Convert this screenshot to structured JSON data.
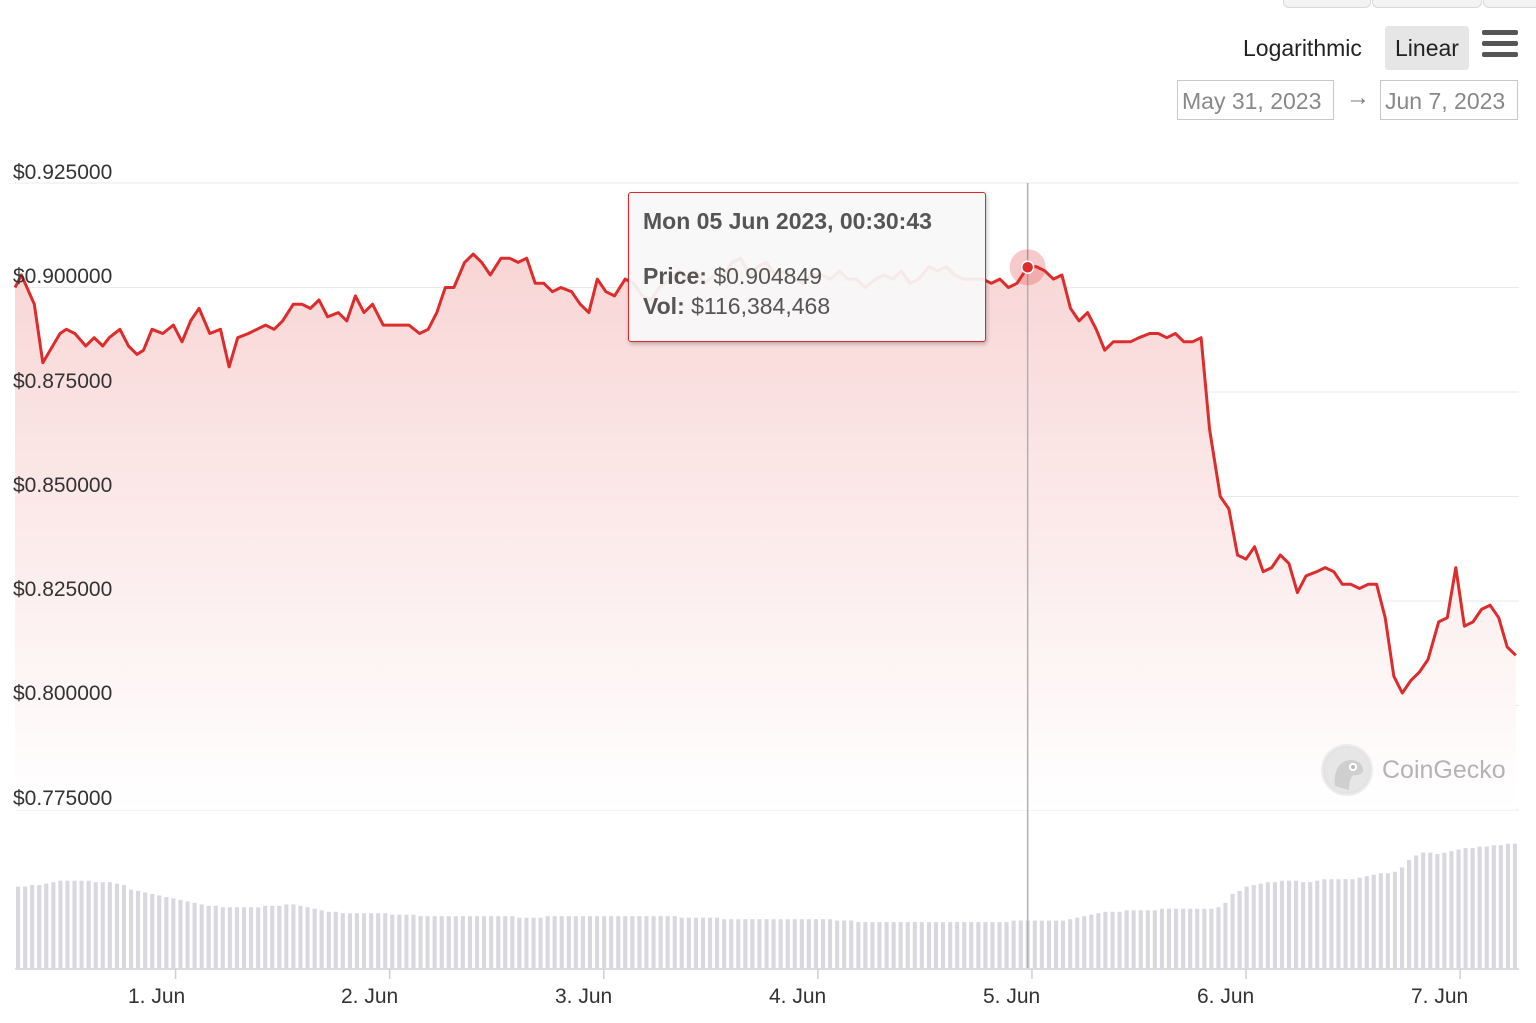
{
  "controls": {
    "scale_log_label": "Logarithmic",
    "scale_linear_label": "Linear",
    "active_scale": "Linear",
    "date_from": "May 31, 2023",
    "date_arrow": "→",
    "date_to": "Jun 7, 2023"
  },
  "tooltip": {
    "date": "Mon 05 Jun 2023, 00:30:43",
    "price_label": "Price:",
    "price_value": "$0.904849",
    "vol_label": "Vol:",
    "vol_value": "$116,384,468"
  },
  "watermark": {
    "text": "CoinGecko"
  },
  "colors": {
    "line": "#dd2c2c",
    "area_top": "#f8d3d3",
    "volume_bar": "#d8d8de",
    "crosshair": "#b0b0b0",
    "grid": "#e9e9e9"
  },
  "chart_data": {
    "type": "line",
    "title": "",
    "xlabel": "",
    "ylabel": "",
    "y_scale": "linear",
    "ylim": [
      0.775,
      0.925
    ],
    "y_ticks": [
      0.925,
      0.9,
      0.875,
      0.85,
      0.825,
      0.8,
      0.775
    ],
    "y_tick_labels": [
      "$0.925000",
      "$0.900000",
      "$0.875000",
      "$0.850000",
      "$0.825000",
      "$0.800000",
      "$0.775000"
    ],
    "x_tick_labels": [
      "1. Jun",
      "2. Jun",
      "3. Jun",
      "4. Jun",
      "5. Jun",
      "6. Jun",
      "7. Jun"
    ],
    "x_tick_days": [
      0.75,
      1.75,
      2.75,
      3.75,
      4.75,
      5.75,
      6.75
    ],
    "x_range_days": [
      0,
      7.025
    ],
    "hover_point": {
      "day": 4.73,
      "price": 0.904849
    },
    "series": [
      {
        "values": [
          [
            0.0,
            0.9
          ],
          [
            0.03,
            0.903
          ],
          [
            0.09,
            0.896
          ],
          [
            0.13,
            0.882
          ],
          [
            0.21,
            0.889
          ],
          [
            0.24,
            0.89
          ],
          [
            0.28,
            0.889
          ],
          [
            0.33,
            0.886
          ],
          [
            0.37,
            0.888
          ],
          [
            0.41,
            0.886
          ],
          [
            0.44,
            0.888
          ],
          [
            0.49,
            0.89
          ],
          [
            0.53,
            0.886
          ],
          [
            0.57,
            0.884
          ],
          [
            0.6,
            0.885
          ],
          [
            0.64,
            0.89
          ],
          [
            0.69,
            0.889
          ],
          [
            0.74,
            0.891
          ],
          [
            0.78,
            0.887
          ],
          [
            0.82,
            0.892
          ],
          [
            0.86,
            0.895
          ],
          [
            0.91,
            0.889
          ],
          [
            0.96,
            0.89
          ],
          [
            1.0,
            0.881
          ],
          [
            1.04,
            0.888
          ],
          [
            1.09,
            0.889
          ],
          [
            1.13,
            0.89
          ],
          [
            1.17,
            0.891
          ],
          [
            1.21,
            0.89
          ],
          [
            1.25,
            0.892
          ],
          [
            1.3,
            0.896
          ],
          [
            1.34,
            0.896
          ],
          [
            1.38,
            0.895
          ],
          [
            1.42,
            0.897
          ],
          [
            1.46,
            0.893
          ],
          [
            1.51,
            0.894
          ],
          [
            1.55,
            0.892
          ],
          [
            1.59,
            0.898
          ],
          [
            1.63,
            0.894
          ],
          [
            1.67,
            0.896
          ],
          [
            1.72,
            0.891
          ],
          [
            1.76,
            0.891
          ],
          [
            1.8,
            0.891
          ],
          [
            1.84,
            0.891
          ],
          [
            1.89,
            0.889
          ],
          [
            1.93,
            0.89
          ],
          [
            1.97,
            0.894
          ],
          [
            2.01,
            0.9
          ],
          [
            2.05,
            0.9
          ],
          [
            2.1,
            0.906
          ],
          [
            2.14,
            0.908
          ],
          [
            2.18,
            0.906
          ],
          [
            2.22,
            0.903
          ],
          [
            2.27,
            0.907
          ],
          [
            2.31,
            0.907
          ],
          [
            2.35,
            0.906
          ],
          [
            2.39,
            0.907
          ],
          [
            2.43,
            0.901
          ],
          [
            2.47,
            0.901
          ],
          [
            2.51,
            0.899
          ],
          [
            2.55,
            0.9
          ],
          [
            2.6,
            0.899
          ],
          [
            2.64,
            0.896
          ],
          [
            2.68,
            0.894
          ],
          [
            2.72,
            0.902
          ],
          [
            2.76,
            0.899
          ],
          [
            2.8,
            0.898
          ],
          [
            2.85,
            0.902
          ],
          [
            2.89,
            0.901
          ],
          [
            2.93,
            0.898
          ],
          [
            2.97,
            0.897
          ],
          [
            3.01,
            0.9
          ],
          [
            3.06,
            0.902
          ],
          [
            3.1,
            0.904
          ],
          [
            3.14,
            0.902
          ],
          [
            3.18,
            0.904
          ],
          [
            3.22,
            0.901
          ],
          [
            3.27,
            0.903
          ],
          [
            3.31,
            0.903
          ],
          [
            3.35,
            0.906
          ],
          [
            3.39,
            0.907
          ],
          [
            3.43,
            0.903
          ],
          [
            3.47,
            0.905
          ],
          [
            3.51,
            0.906
          ],
          [
            3.55,
            0.903
          ],
          [
            3.6,
            0.904
          ],
          [
            3.64,
            0.902
          ],
          [
            3.68,
            0.901
          ],
          [
            3.72,
            0.903
          ],
          [
            3.77,
            0.903
          ],
          [
            3.81,
            0.902
          ],
          [
            3.85,
            0.904
          ],
          [
            3.89,
            0.902
          ],
          [
            3.93,
            0.902
          ],
          [
            3.97,
            0.9
          ],
          [
            4.02,
            0.902
          ],
          [
            4.06,
            0.903
          ],
          [
            4.1,
            0.902
          ],
          [
            4.14,
            0.904
          ],
          [
            4.18,
            0.901
          ],
          [
            4.22,
            0.902
          ],
          [
            4.27,
            0.905
          ],
          [
            4.31,
            0.904
          ],
          [
            4.35,
            0.905
          ],
          [
            4.39,
            0.903
          ],
          [
            4.43,
            0.902
          ],
          [
            4.47,
            0.902
          ],
          [
            4.52,
            0.902
          ],
          [
            4.56,
            0.901
          ],
          [
            4.6,
            0.902
          ],
          [
            4.64,
            0.9
          ],
          [
            4.68,
            0.901
          ],
          [
            4.73,
            0.904849
          ],
          [
            4.77,
            0.905
          ],
          [
            4.81,
            0.904
          ],
          [
            4.85,
            0.902
          ],
          [
            4.89,
            0.903
          ],
          [
            4.93,
            0.895
          ],
          [
            4.97,
            0.892
          ],
          [
            5.01,
            0.894
          ],
          [
            5.05,
            0.89
          ],
          [
            5.09,
            0.885
          ],
          [
            5.13,
            0.887
          ],
          [
            5.17,
            0.887
          ],
          [
            5.21,
            0.887
          ],
          [
            5.25,
            0.888
          ],
          [
            5.3,
            0.889
          ],
          [
            5.34,
            0.889
          ],
          [
            5.38,
            0.888
          ],
          [
            5.42,
            0.889
          ],
          [
            5.46,
            0.887
          ],
          [
            5.5,
            0.887
          ],
          [
            5.54,
            0.888
          ],
          [
            5.58,
            0.866
          ],
          [
            5.63,
            0.85
          ],
          [
            5.67,
            0.847
          ],
          [
            5.71,
            0.836
          ],
          [
            5.75,
            0.835
          ],
          [
            5.79,
            0.838
          ],
          [
            5.83,
            0.832
          ],
          [
            5.87,
            0.833
          ],
          [
            5.91,
            0.836
          ],
          [
            5.95,
            0.834
          ],
          [
            5.99,
            0.827
          ],
          [
            6.03,
            0.831
          ],
          [
            6.08,
            0.832
          ],
          [
            6.12,
            0.833
          ],
          [
            6.16,
            0.832
          ],
          [
            6.2,
            0.829
          ],
          [
            6.24,
            0.829
          ],
          [
            6.28,
            0.828
          ],
          [
            6.32,
            0.829
          ],
          [
            6.36,
            0.829
          ],
          [
            6.4,
            0.821
          ],
          [
            6.44,
            0.807
          ],
          [
            6.48,
            0.803
          ],
          [
            6.52,
            0.806
          ],
          [
            6.56,
            0.808
          ],
          [
            6.6,
            0.811
          ],
          [
            6.65,
            0.82
          ],
          [
            6.69,
            0.821
          ],
          [
            6.73,
            0.833
          ],
          [
            6.77,
            0.819
          ],
          [
            6.81,
            0.82
          ],
          [
            6.85,
            0.823
          ],
          [
            6.89,
            0.824
          ],
          [
            6.93,
            0.821
          ],
          [
            6.97,
            0.814
          ],
          [
            7.01,
            0.812
          ]
        ]
      }
    ],
    "volume": {
      "bar_count": 213,
      "max_value": 100,
      "values": [
        55,
        55,
        56,
        56,
        57,
        58,
        59,
        59,
        59,
        59,
        59,
        58,
        58,
        58,
        57,
        56,
        53,
        52,
        51,
        50,
        49,
        48,
        47,
        46,
        45,
        44,
        43,
        42,
        42,
        41,
        41,
        41,
        41,
        41,
        41,
        42,
        42,
        42,
        43,
        43,
        42,
        41,
        40,
        39,
        38,
        38,
        37,
        37,
        37,
        37,
        37,
        37,
        37,
        36,
        36,
        36,
        36,
        35,
        35,
        35,
        35,
        35,
        35,
        35,
        35,
        35,
        35,
        35,
        35,
        35,
        35,
        34,
        34,
        34,
        34,
        35,
        35,
        35,
        35,
        35,
        35,
        35,
        35,
        35,
        35,
        35,
        35,
        35,
        35,
        35,
        35,
        35,
        35,
        35,
        34,
        34,
        34,
        34,
        34,
        34,
        33,
        33,
        33,
        33,
        33,
        33,
        33,
        33,
        33,
        33,
        33,
        33,
        33,
        33,
        33,
        33,
        32,
        32,
        32,
        31,
        31,
        31,
        31,
        31,
        31,
        31,
        31,
        31,
        31,
        31,
        31,
        31,
        31,
        31,
        31,
        31,
        31,
        31,
        31,
        31,
        31,
        32,
        32,
        32,
        32,
        32,
        32,
        32,
        32,
        33,
        34,
        35,
        36,
        37,
        38,
        38,
        38,
        39,
        39,
        39,
        39,
        39,
        40,
        40,
        40,
        40,
        40,
        40,
        40,
        40,
        41,
        44,
        50,
        52,
        55,
        56,
        57,
        58,
        58,
        59,
        59,
        59,
        58,
        58,
        59,
        60,
        60,
        60,
        60,
        60,
        61,
        62,
        63,
        64,
        64,
        65,
        68,
        73,
        76,
        78,
        78,
        77,
        78,
        79,
        80,
        81,
        81,
        82,
        82,
        83,
        83,
        84,
        84
      ]
    }
  }
}
